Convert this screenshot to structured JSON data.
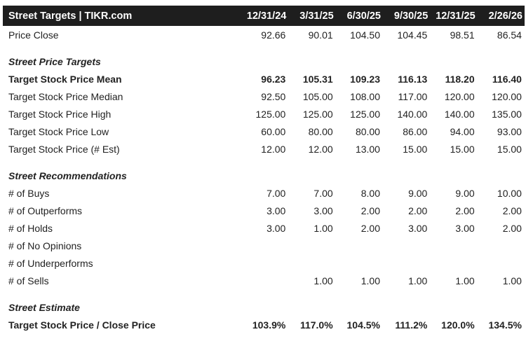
{
  "title": "Street Targets | TIKR.com",
  "dates": [
    "12/31/24",
    "3/31/25",
    "6/30/25",
    "9/30/25",
    "12/31/25",
    "2/26/26"
  ],
  "price_close": {
    "label": "Price Close",
    "values": [
      "92.66",
      "90.01",
      "104.50",
      "104.45",
      "98.51",
      "86.54"
    ]
  },
  "price_targets": {
    "section_label": "Street Price Targets",
    "rows": [
      {
        "label": "Target Stock Price Mean",
        "bold": true,
        "values": [
          "96.23",
          "105.31",
          "109.23",
          "116.13",
          "118.20",
          "116.40"
        ]
      },
      {
        "label": "Target Stock Price Median",
        "bold": false,
        "values": [
          "92.50",
          "105.00",
          "108.00",
          "117.00",
          "120.00",
          "120.00"
        ]
      },
      {
        "label": "Target Stock Price High",
        "bold": false,
        "values": [
          "125.00",
          "125.00",
          "125.00",
          "140.00",
          "140.00",
          "135.00"
        ]
      },
      {
        "label": "Target Stock Price Low",
        "bold": false,
        "values": [
          "60.00",
          "80.00",
          "80.00",
          "86.00",
          "94.00",
          "93.00"
        ]
      },
      {
        "label": "Target Stock Price (# Est)",
        "bold": false,
        "values": [
          "12.00",
          "12.00",
          "13.00",
          "15.00",
          "15.00",
          "15.00"
        ]
      }
    ]
  },
  "recommendations": {
    "section_label": "Street Recommendations",
    "rows": [
      {
        "label": "# of Buys",
        "bold": false,
        "values": [
          "7.00",
          "7.00",
          "8.00",
          "9.00",
          "9.00",
          "10.00"
        ]
      },
      {
        "label": "# of Outperforms",
        "bold": false,
        "values": [
          "3.00",
          "3.00",
          "2.00",
          "2.00",
          "2.00",
          "2.00"
        ]
      },
      {
        "label": "# of Holds",
        "bold": false,
        "values": [
          "3.00",
          "1.00",
          "2.00",
          "3.00",
          "3.00",
          "2.00"
        ]
      },
      {
        "label": "# of No Opinions",
        "bold": false,
        "values": [
          "",
          "",
          "",
          "",
          "",
          ""
        ]
      },
      {
        "label": "# of Underperforms",
        "bold": false,
        "values": [
          "",
          "",
          "",
          "",
          "",
          ""
        ]
      },
      {
        "label": "# of Sells",
        "bold": false,
        "values": [
          "",
          "1.00",
          "1.00",
          "1.00",
          "1.00",
          "1.00"
        ]
      }
    ]
  },
  "estimate": {
    "section_label": "Street Estimate",
    "rows": [
      {
        "label": "Target Stock Price / Close Price",
        "bold": true,
        "values": [
          "103.9%",
          "117.0%",
          "104.5%",
          "111.2%",
          "120.0%",
          "134.5%"
        ]
      }
    ]
  }
}
